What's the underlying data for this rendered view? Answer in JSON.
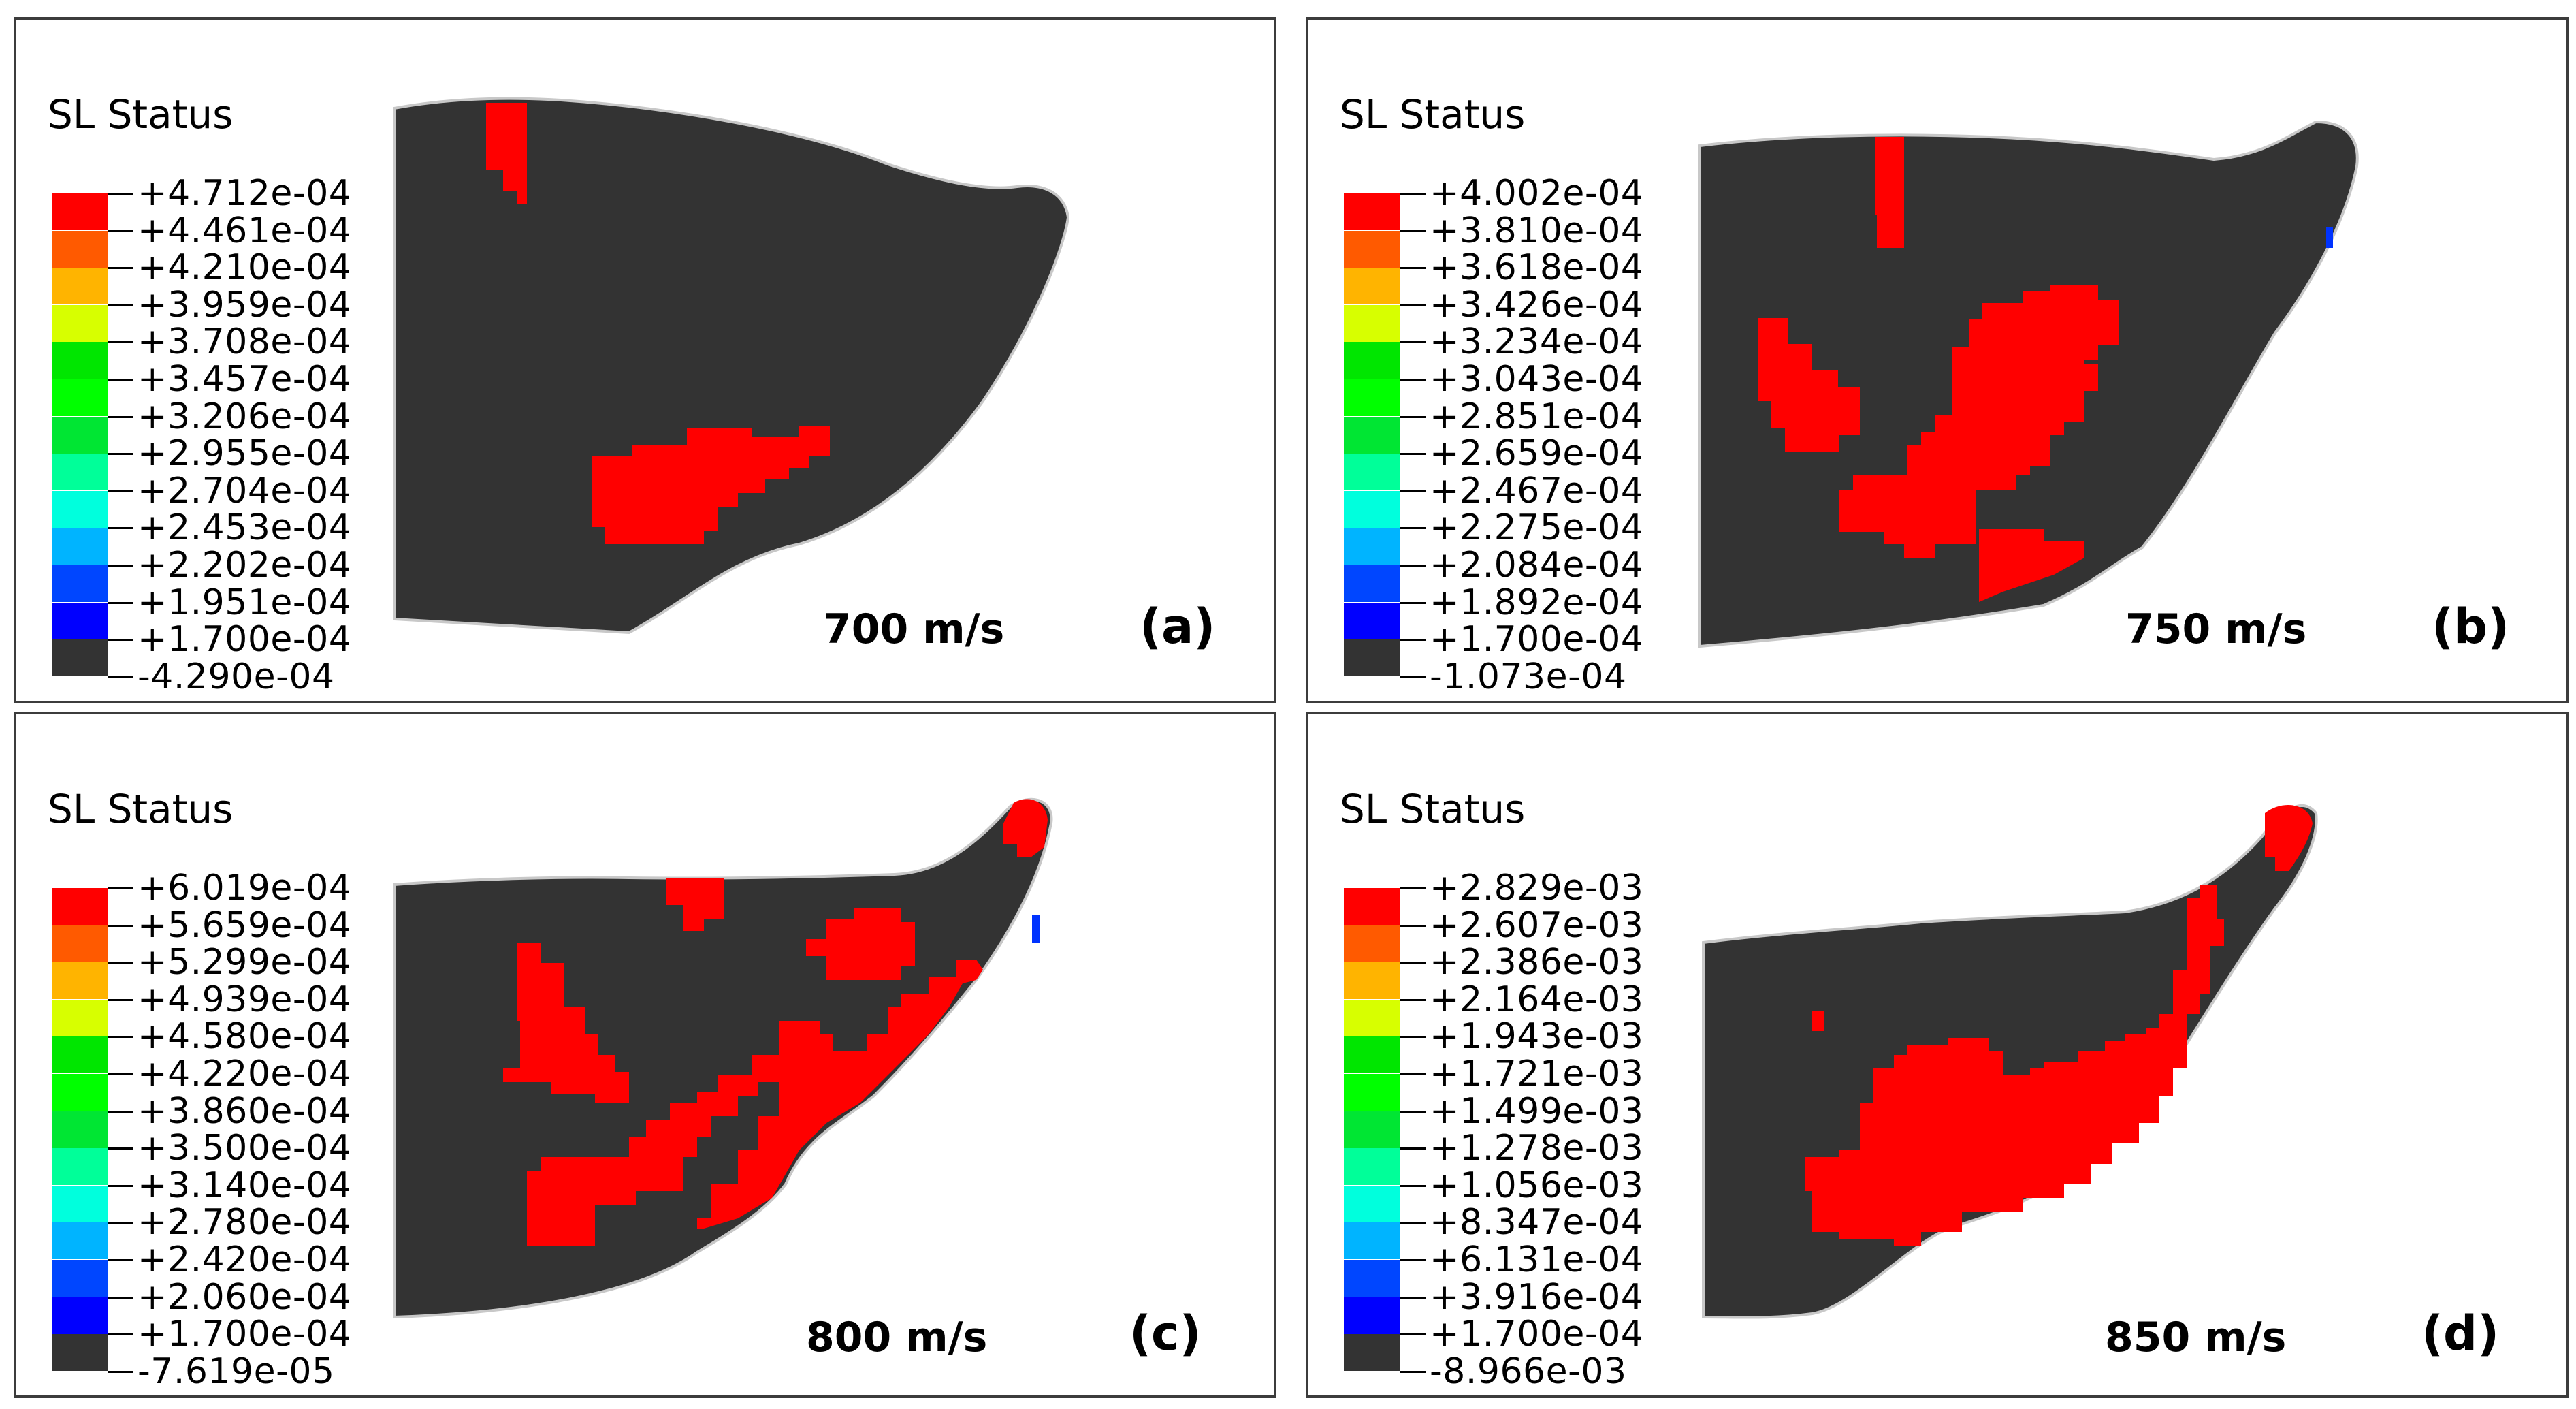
{
  "colors": {
    "domain_fill": "#333333",
    "outline": "#c8c8c8",
    "red": "#ff0000",
    "blue": "#0033ff",
    "scale": [
      "#ff0000",
      "#ff5a00",
      "#ffb400",
      "#d7ff00",
      "#00e600",
      "#00ff00",
      "#00e633",
      "#00ff99",
      "#00ffdd",
      "#00b4ff",
      "#0046ff",
      "#0000ff",
      "#333333"
    ]
  },
  "panels": [
    {
      "id": "a",
      "legend_title": "SL Status",
      "legend_values": [
        "+4.712e-04",
        "+4.461e-04",
        "+4.210e-04",
        "+3.959e-04",
        "+3.708e-04",
        "+3.457e-04",
        "+3.206e-04",
        "+2.955e-04",
        "+2.704e-04",
        "+2.453e-04",
        "+2.202e-04",
        "+1.951e-04",
        "+1.700e-04",
        "-4.290e-04"
      ],
      "speed": "700 m/s",
      "label": "(a)"
    },
    {
      "id": "b",
      "legend_title": "SL Status",
      "legend_values": [
        "+4.002e-04",
        "+3.810e-04",
        "+3.618e-04",
        "+3.426e-04",
        "+3.234e-04",
        "+3.043e-04",
        "+2.851e-04",
        "+2.659e-04",
        "+2.467e-04",
        "+2.275e-04",
        "+2.084e-04",
        "+1.892e-04",
        "+1.700e-04",
        "-1.073e-04"
      ],
      "speed": "750 m/s",
      "label": "(b)"
    },
    {
      "id": "c",
      "legend_title": "SL Status",
      "legend_values": [
        "+6.019e-04",
        "+5.659e-04",
        "+5.299e-04",
        "+4.939e-04",
        "+4.580e-04",
        "+4.220e-04",
        "+3.860e-04",
        "+3.500e-04",
        "+3.140e-04",
        "+2.780e-04",
        "+2.420e-04",
        "+2.060e-04",
        "+1.700e-04",
        "-7.619e-05"
      ],
      "speed": "800 m/s",
      "label": "(c)"
    },
    {
      "id": "d",
      "legend_title": "SL Status",
      "legend_values": [
        "+2.829e-03",
        "+2.607e-03",
        "+2.386e-03",
        "+2.164e-03",
        "+1.943e-03",
        "+1.721e-03",
        "+1.499e-03",
        "+1.278e-03",
        "+1.056e-03",
        "+8.347e-04",
        "+6.131e-04",
        "+3.916e-04",
        "+1.700e-04",
        "-8.966e-03"
      ],
      "speed": "850 m/s",
      "label": "(d)"
    }
  ]
}
